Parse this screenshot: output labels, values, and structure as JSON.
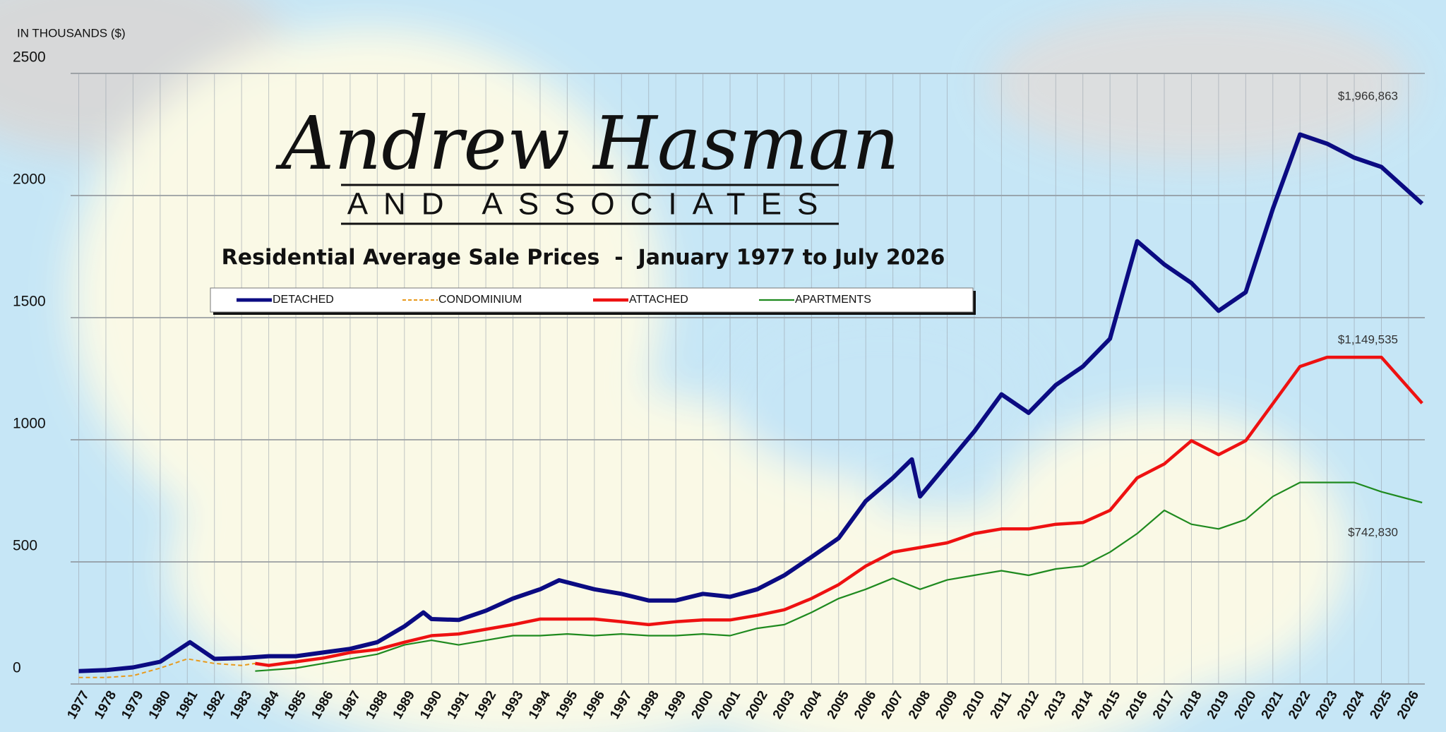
{
  "chart_data": {
    "type": "line",
    "brand": {
      "name": "Andrew Hasman",
      "tagline": "AND ASSOCIATES"
    },
    "title": "Residential Average Sale Prices  -  January 1977 to July 2026",
    "y_label": "IN THOUSANDS ($)",
    "xlim": [
      1976.7,
      2026.6
    ],
    "xticks": [
      1977,
      1978,
      1979,
      1980,
      1981,
      1982,
      1983,
      1984,
      1985,
      1986,
      1987,
      1988,
      1989,
      1990,
      1991,
      1992,
      1993,
      1994,
      1995,
      1996,
      1997,
      1998,
      1999,
      2000,
      2001,
      2002,
      2003,
      2004,
      2005,
      2006,
      2007,
      2008,
      2009,
      2010,
      2011,
      2012,
      2013,
      2014,
      2015,
      2016,
      2017,
      2018,
      2019,
      2020,
      2021,
      2022,
      2023,
      2024,
      2025,
      2026
    ],
    "ylim": [
      0,
      2500
    ],
    "yticks": [
      0,
      500,
      1000,
      1500,
      2000,
      2500
    ],
    "grid": true,
    "legend": "top",
    "series": [
      {
        "name": "DETACHED",
        "color": "#0b0b82",
        "line_style": "solid",
        "x": [
          1977,
          1978,
          1979,
          1980,
          1981.1,
          1982,
          1983,
          1984,
          1985,
          1986,
          1987,
          1988,
          1989,
          1989.7,
          1990,
          1991,
          1992,
          1993,
          1994,
          1994.7,
          1996,
          1997,
          1998,
          1999,
          2000,
          2001,
          2002,
          2003,
          2004,
          2005,
          2006,
          2007,
          2007.7,
          2008,
          2009,
          2010,
          2011,
          2012,
          2013,
          2014,
          2015,
          2016,
          2017,
          2018,
          2019,
          2020,
          2021,
          2022,
          2023,
          2024,
          2025,
          2026.5
        ],
        "values": [
          53,
          57,
          68,
          91,
          171,
          103,
          106,
          114,
          114,
          129,
          144,
          171,
          236,
          293,
          266,
          262,
          300,
          350,
          388,
          425,
          388,
          369,
          342,
          342,
          369,
          357,
          388,
          445,
          520,
          597,
          749,
          844,
          920,
          768,
          901,
          1034,
          1186,
          1110,
          1224,
          1300,
          1414,
          1813,
          1718,
          1642,
          1528,
          1604,
          1946,
          2250,
          2212,
          2155,
          2117,
          1966.863
        ],
        "end_label": "$1,966,863"
      },
      {
        "name": "CONDOMINIUM",
        "color": "#e89a1c",
        "line_style": "dashed",
        "x": [
          1977,
          1978,
          1979,
          1980,
          1981,
          1982,
          1983,
          1983.5
        ],
        "values": [
          27,
          27,
          34,
          65,
          103,
          84,
          76,
          84
        ]
      },
      {
        "name": "ATTACHED",
        "color": "#ee1111",
        "line_style": "solid",
        "x": [
          1983.5,
          1984,
          1985,
          1986,
          1987,
          1988,
          1989,
          1990,
          1991,
          1992,
          1993,
          1994,
          1995,
          1996,
          1997,
          1998,
          1999,
          2000,
          2001,
          2002,
          2003,
          2004,
          2005,
          2006,
          2007,
          2008,
          2009,
          2010,
          2011,
          2012,
          2013,
          2014,
          2015,
          2016,
          2017,
          2018,
          2019,
          2020,
          2021,
          2022,
          2023,
          2024,
          2025,
          2026.5
        ],
        "values": [
          84,
          76,
          91,
          106,
          129,
          141,
          171,
          198,
          205,
          224,
          243,
          266,
          266,
          266,
          255,
          243,
          255,
          262,
          262,
          281,
          304,
          350,
          407,
          483,
          540,
          559,
          578,
          616,
          635,
          635,
          654,
          661,
          711,
          844,
          901,
          996,
          939,
          996,
          1148,
          1300,
          1338,
          1338,
          1338,
          1149.535
        ],
        "end_label": "$1,149,535"
      },
      {
        "name": "APARTMENTS",
        "color": "#1f8a1f",
        "line_style": "solid",
        "x": [
          1983.5,
          1984,
          1985,
          1986,
          1987,
          1988,
          1989,
          1990,
          1991,
          1992,
          1993,
          1994,
          1995,
          1996,
          1997,
          1998,
          1999,
          2000,
          2001,
          2002,
          2003,
          2004,
          2005,
          2006,
          2007,
          2008,
          2009,
          2010,
          2011,
          2012,
          2013,
          2014,
          2015,
          2016,
          2017,
          2018,
          2019,
          2020,
          2021,
          2022,
          2023,
          2024,
          2025,
          2026.5
        ],
        "values": [
          53,
          57,
          65,
          84,
          103,
          122,
          160,
          179,
          160,
          179,
          198,
          198,
          205,
          198,
          205,
          198,
          198,
          205,
          198,
          228,
          243,
          293,
          350,
          388,
          433,
          388,
          426,
          445,
          464,
          445,
          471,
          483,
          540,
          616,
          711,
          654,
          635,
          673,
          768,
          825,
          825,
          825,
          787,
          742.83
        ],
        "end_label": "$742,830"
      }
    ]
  }
}
